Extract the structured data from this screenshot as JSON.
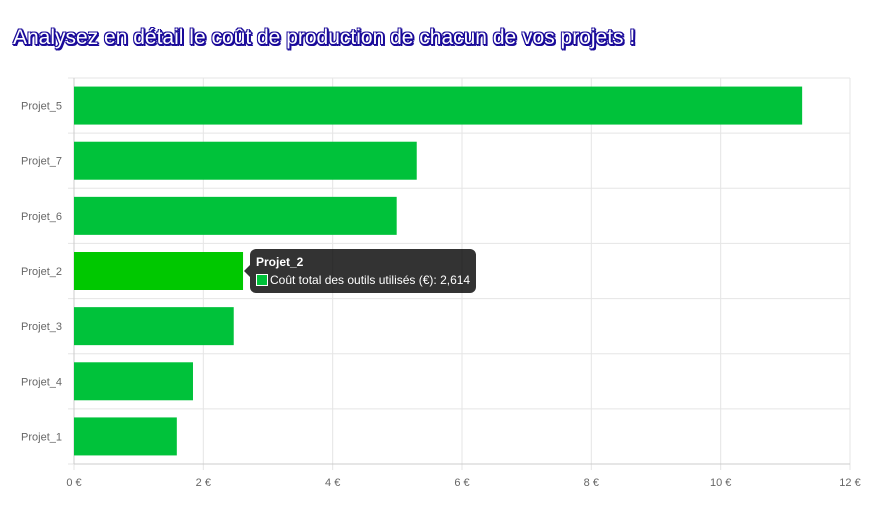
{
  "title": "Analysez en détail le coût de production de chacun de vos projets !",
  "chart_data": {
    "type": "bar",
    "orientation": "horizontal",
    "categories": [
      "Projet_5",
      "Projet_7",
      "Projet_6",
      "Projet_2",
      "Projet_3",
      "Projet_4",
      "Projet_1"
    ],
    "series": [
      {
        "name": "Coût total des outils utilisés (€)",
        "values": [
          11.26,
          5.3,
          4.99,
          2.614,
          2.47,
          1.84,
          1.59
        ]
      }
    ],
    "xlim": [
      0,
      12
    ],
    "xticks": [
      0,
      2,
      4,
      6,
      8,
      10,
      12
    ],
    "xtick_labels": [
      "0 €",
      "2 €",
      "4 €",
      "6 €",
      "8 €",
      "10 €",
      "12 €"
    ],
    "grid": true,
    "colors": {
      "bar": "#00c23a",
      "bar_hover": "#00c800",
      "grid": "#e5e5e5"
    }
  },
  "tooltip": {
    "title": "Projet_2",
    "label": "Coût total des outils utilisés (€): 2,614",
    "swatch_color": "#00c23a"
  }
}
